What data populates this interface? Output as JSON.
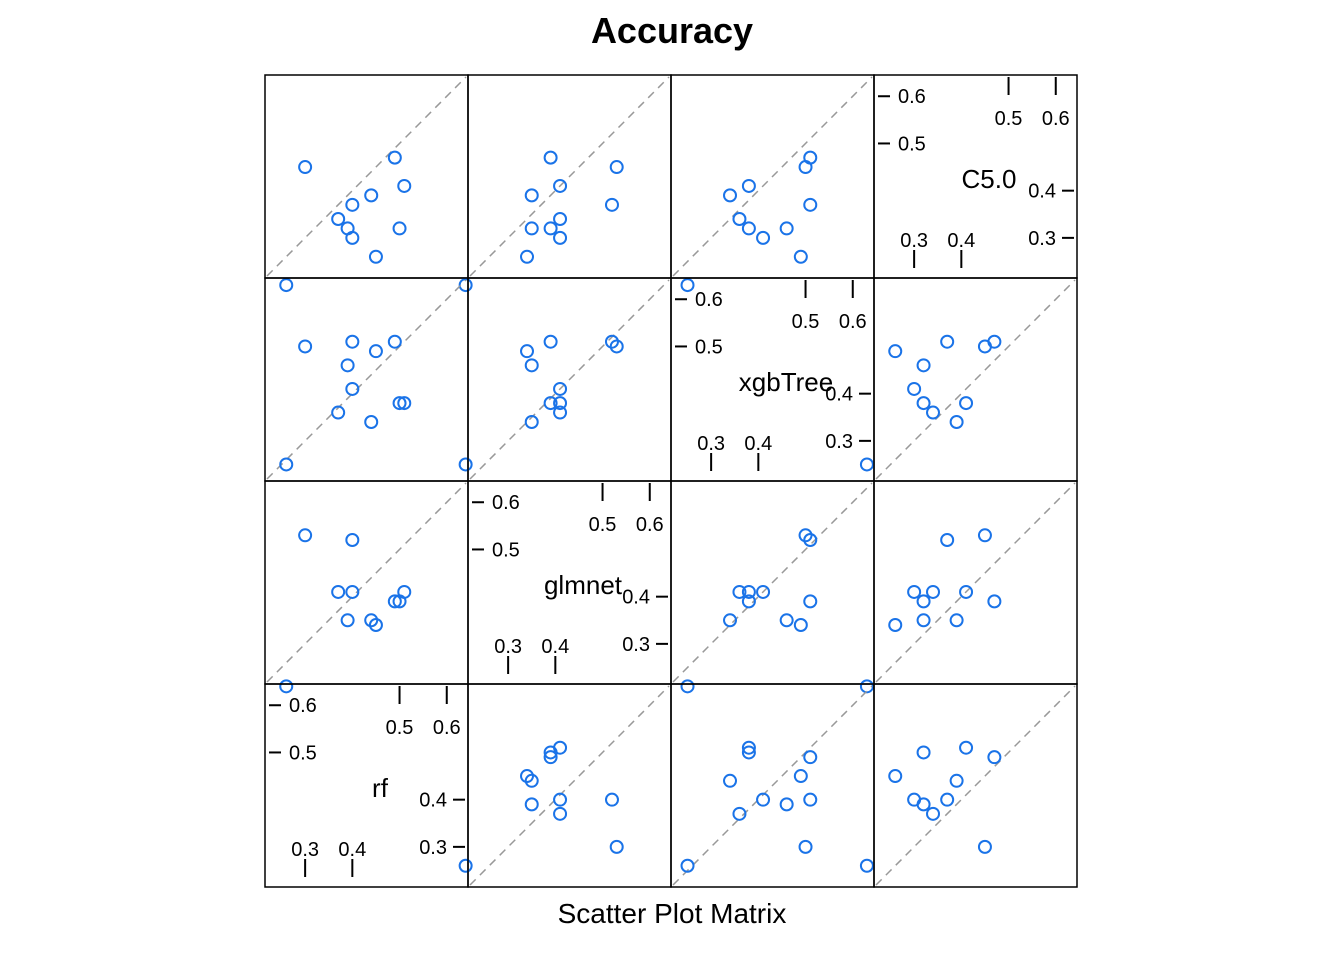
{
  "chart_data": {
    "type": "scatter",
    "title": "Accuracy",
    "xlabel": "Scatter Plot Matrix",
    "variables": [
      "rf",
      "glmnet",
      "xgbTree",
      "C5.0"
    ],
    "axis_range": [
      0.215,
      0.645
    ],
    "tick_labels_low": [
      "0.3",
      "0.4"
    ],
    "tick_labels_high": [
      "0.5",
      "0.6"
    ],
    "low_ticks": [
      0.3,
      0.4
    ],
    "high_ticks": [
      0.5,
      0.6
    ],
    "points": {
      "rf": [
        0.26,
        0.3,
        0.49,
        0.44,
        0.51,
        0.37,
        0.39,
        0.4,
        0.5,
        0.4,
        0.45
      ],
      "glmnet": [
        0.21,
        0.53,
        0.39,
        0.35,
        0.41,
        0.41,
        0.35,
        0.41,
        0.39,
        0.52,
        0.34
      ],
      "xgbTree": [
        0.25,
        0.5,
        0.51,
        0.34,
        0.38,
        0.36,
        0.46,
        0.41,
        0.38,
        0.51,
        0.49
      ],
      "C5.0": [
        0.2,
        0.45,
        0.47,
        0.39,
        0.41,
        0.34,
        0.32,
        0.3,
        0.32,
        0.37,
        0.26
      ]
    },
    "point_color": "#1a73e8",
    "reference_line": "identity (y = x), dashed grey",
    "grid": false,
    "legend": "none"
  }
}
